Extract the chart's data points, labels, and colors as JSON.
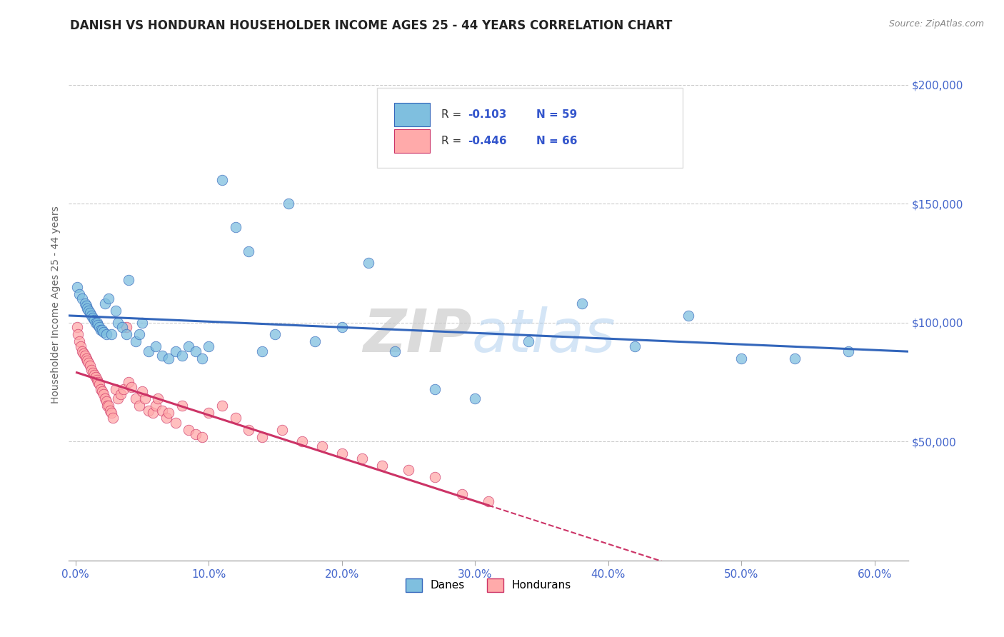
{
  "title": "DANISH VS HONDURAN HOUSEHOLDER INCOME AGES 25 - 44 YEARS CORRELATION CHART",
  "source": "Source: ZipAtlas.com",
  "xlabel_ticks": [
    "0.0%",
    "10.0%",
    "20.0%",
    "30.0%",
    "40.0%",
    "50.0%",
    "60.0%"
  ],
  "xlabel_vals": [
    0.0,
    0.1,
    0.2,
    0.3,
    0.4,
    0.5,
    0.6
  ],
  "ylabel_ticks": [
    "$50,000",
    "$100,000",
    "$150,000",
    "$200,000"
  ],
  "ylabel_vals": [
    50000,
    100000,
    150000,
    200000
  ],
  "ylim": [
    0,
    215000
  ],
  "xlim": [
    -0.005,
    0.625
  ],
  "danes_color": "#7fbfdf",
  "hondurans_color": "#ffaaaa",
  "danes_line_color": "#3366bb",
  "hondurans_line_color": "#cc3366",
  "danes_R": -0.103,
  "danes_N": 59,
  "hondurans_R": -0.446,
  "hondurans_N": 66,
  "ylabel": "Householder Income Ages 25 - 44 years",
  "danes_x": [
    0.001,
    0.003,
    0.005,
    0.007,
    0.008,
    0.009,
    0.01,
    0.011,
    0.012,
    0.013,
    0.014,
    0.015,
    0.016,
    0.017,
    0.018,
    0.019,
    0.02,
    0.021,
    0.022,
    0.023,
    0.025,
    0.027,
    0.03,
    0.032,
    0.035,
    0.038,
    0.04,
    0.045,
    0.048,
    0.05,
    0.055,
    0.06,
    0.065,
    0.07,
    0.075,
    0.08,
    0.085,
    0.09,
    0.095,
    0.1,
    0.11,
    0.12,
    0.13,
    0.14,
    0.15,
    0.16,
    0.18,
    0.2,
    0.22,
    0.24,
    0.27,
    0.3,
    0.34,
    0.38,
    0.42,
    0.46,
    0.5,
    0.54,
    0.58
  ],
  "danes_y": [
    115000,
    112000,
    110000,
    108000,
    107000,
    106000,
    105000,
    104000,
    103000,
    102000,
    101000,
    100000,
    100000,
    99000,
    98000,
    97000,
    97000,
    96000,
    108000,
    95000,
    110000,
    95000,
    105000,
    100000,
    98000,
    95000,
    118000,
    92000,
    95000,
    100000,
    88000,
    90000,
    86000,
    85000,
    88000,
    86000,
    90000,
    88000,
    85000,
    90000,
    160000,
    140000,
    130000,
    88000,
    95000,
    150000,
    92000,
    98000,
    125000,
    88000,
    72000,
    68000,
    92000,
    108000,
    90000,
    103000,
    85000,
    85000,
    88000
  ],
  "hondurans_x": [
    0.001,
    0.002,
    0.003,
    0.004,
    0.005,
    0.006,
    0.007,
    0.008,
    0.009,
    0.01,
    0.011,
    0.012,
    0.013,
    0.014,
    0.015,
    0.016,
    0.017,
    0.018,
    0.019,
    0.02,
    0.021,
    0.022,
    0.023,
    0.024,
    0.025,
    0.026,
    0.027,
    0.028,
    0.03,
    0.032,
    0.034,
    0.036,
    0.038,
    0.04,
    0.042,
    0.045,
    0.048,
    0.05,
    0.052,
    0.055,
    0.058,
    0.06,
    0.062,
    0.065,
    0.068,
    0.07,
    0.075,
    0.08,
    0.085,
    0.09,
    0.095,
    0.1,
    0.11,
    0.12,
    0.13,
    0.14,
    0.155,
    0.17,
    0.185,
    0.2,
    0.215,
    0.23,
    0.25,
    0.27,
    0.29,
    0.31
  ],
  "hondurans_y": [
    98000,
    95000,
    92000,
    90000,
    88000,
    87000,
    86000,
    85000,
    84000,
    83000,
    82000,
    80000,
    79000,
    78000,
    77000,
    76000,
    75000,
    74000,
    72000,
    71000,
    70000,
    68000,
    67000,
    65000,
    65000,
    63000,
    62000,
    60000,
    72000,
    68000,
    70000,
    72000,
    98000,
    75000,
    73000,
    68000,
    65000,
    71000,
    68000,
    63000,
    62000,
    65000,
    68000,
    63000,
    60000,
    62000,
    58000,
    65000,
    55000,
    53000,
    52000,
    62000,
    65000,
    60000,
    55000,
    52000,
    55000,
    50000,
    48000,
    45000,
    43000,
    40000,
    38000,
    35000,
    28000,
    25000
  ]
}
